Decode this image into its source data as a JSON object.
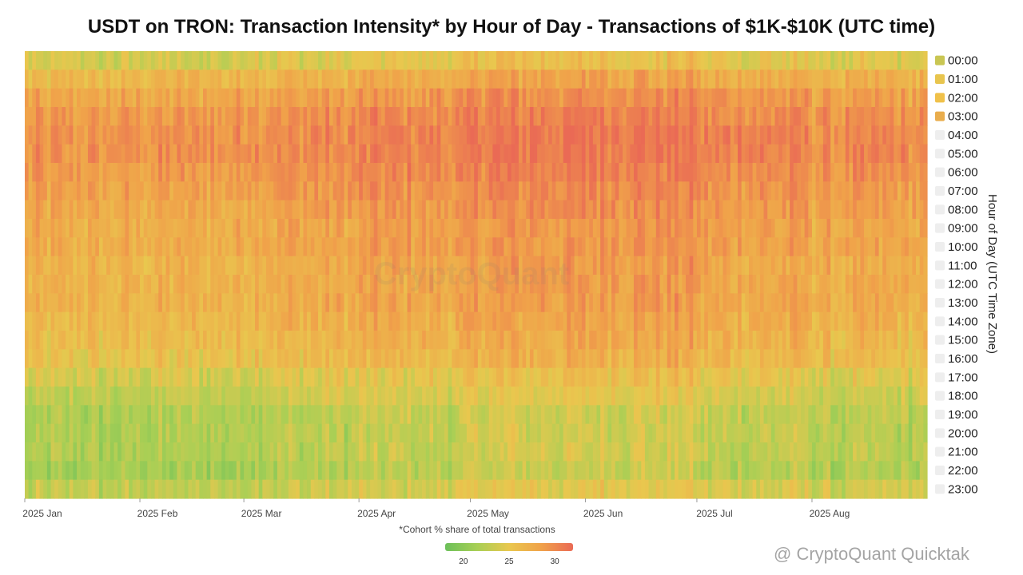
{
  "chart_data": {
    "type": "heatmap",
    "title": "USDT on TRON: Transaction Intensity* by Hour of Day - Transactions of $1K-$10K (UTC time)",
    "footnote": "*Cohort % share of total transactions",
    "ylabel": "Hour of Day (UTC Time Zone)",
    "x_ticks": [
      "2025 Jan",
      "2025 Feb",
      "2025 Mar",
      "2025 Apr",
      "2025 May",
      "2025 Jun",
      "2025 Jul",
      "2025 Aug"
    ],
    "x_start": "2025-01-01",
    "x_end": "2025-08-31",
    "hours": [
      "00:00",
      "01:00",
      "02:00",
      "03:00",
      "04:00",
      "05:00",
      "06:00",
      "07:00",
      "08:00",
      "09:00",
      "10:00",
      "11:00",
      "12:00",
      "13:00",
      "14:00",
      "15:00",
      "16:00",
      "17:00",
      "18:00",
      "19:00",
      "20:00",
      "21:00",
      "22:00",
      "23:00"
    ],
    "legend_active": [
      "00:00",
      "01:00",
      "02:00",
      "03:00"
    ],
    "legend_colors": [
      "#c9c653",
      "#e8c54e",
      "#f0c14a",
      "#e9ad4d"
    ],
    "hour_profile": [
      24.5,
      27.0,
      28.5,
      29.5,
      30.0,
      30.0,
      29.5,
      29.0,
      28.5,
      28.0,
      28.0,
      27.5,
      27.5,
      27.5,
      27.0,
      26.5,
      26.0,
      24.5,
      23.5,
      22.5,
      22.5,
      22.5,
      22.0,
      23.5
    ],
    "month_offsets": [
      {
        "month": "2025 Jan",
        "offset": -0.8
      },
      {
        "month": "2025 Feb",
        "offset": -0.6
      },
      {
        "month": "2025 Mar",
        "offset": 0.0
      },
      {
        "month": "2025 Apr",
        "offset": 0.4
      },
      {
        "month": "2025 May",
        "offset": 1.2
      },
      {
        "month": "2025 Jun",
        "offset": 1.4
      },
      {
        "month": "2025 Jul",
        "offset": 0.4
      },
      {
        "month": "2025 Aug",
        "offset": -0.2
      }
    ],
    "colorbar": {
      "ticks": [
        20,
        25,
        30
      ],
      "range": [
        18,
        32
      ],
      "colors": [
        "#6cc05a",
        "#a8cf55",
        "#e9c74e",
        "#f0a24a",
        "#ea6a55"
      ]
    }
  },
  "watermark": "CryptoQuant",
  "credit": "@ CryptoQuant Quicktak"
}
